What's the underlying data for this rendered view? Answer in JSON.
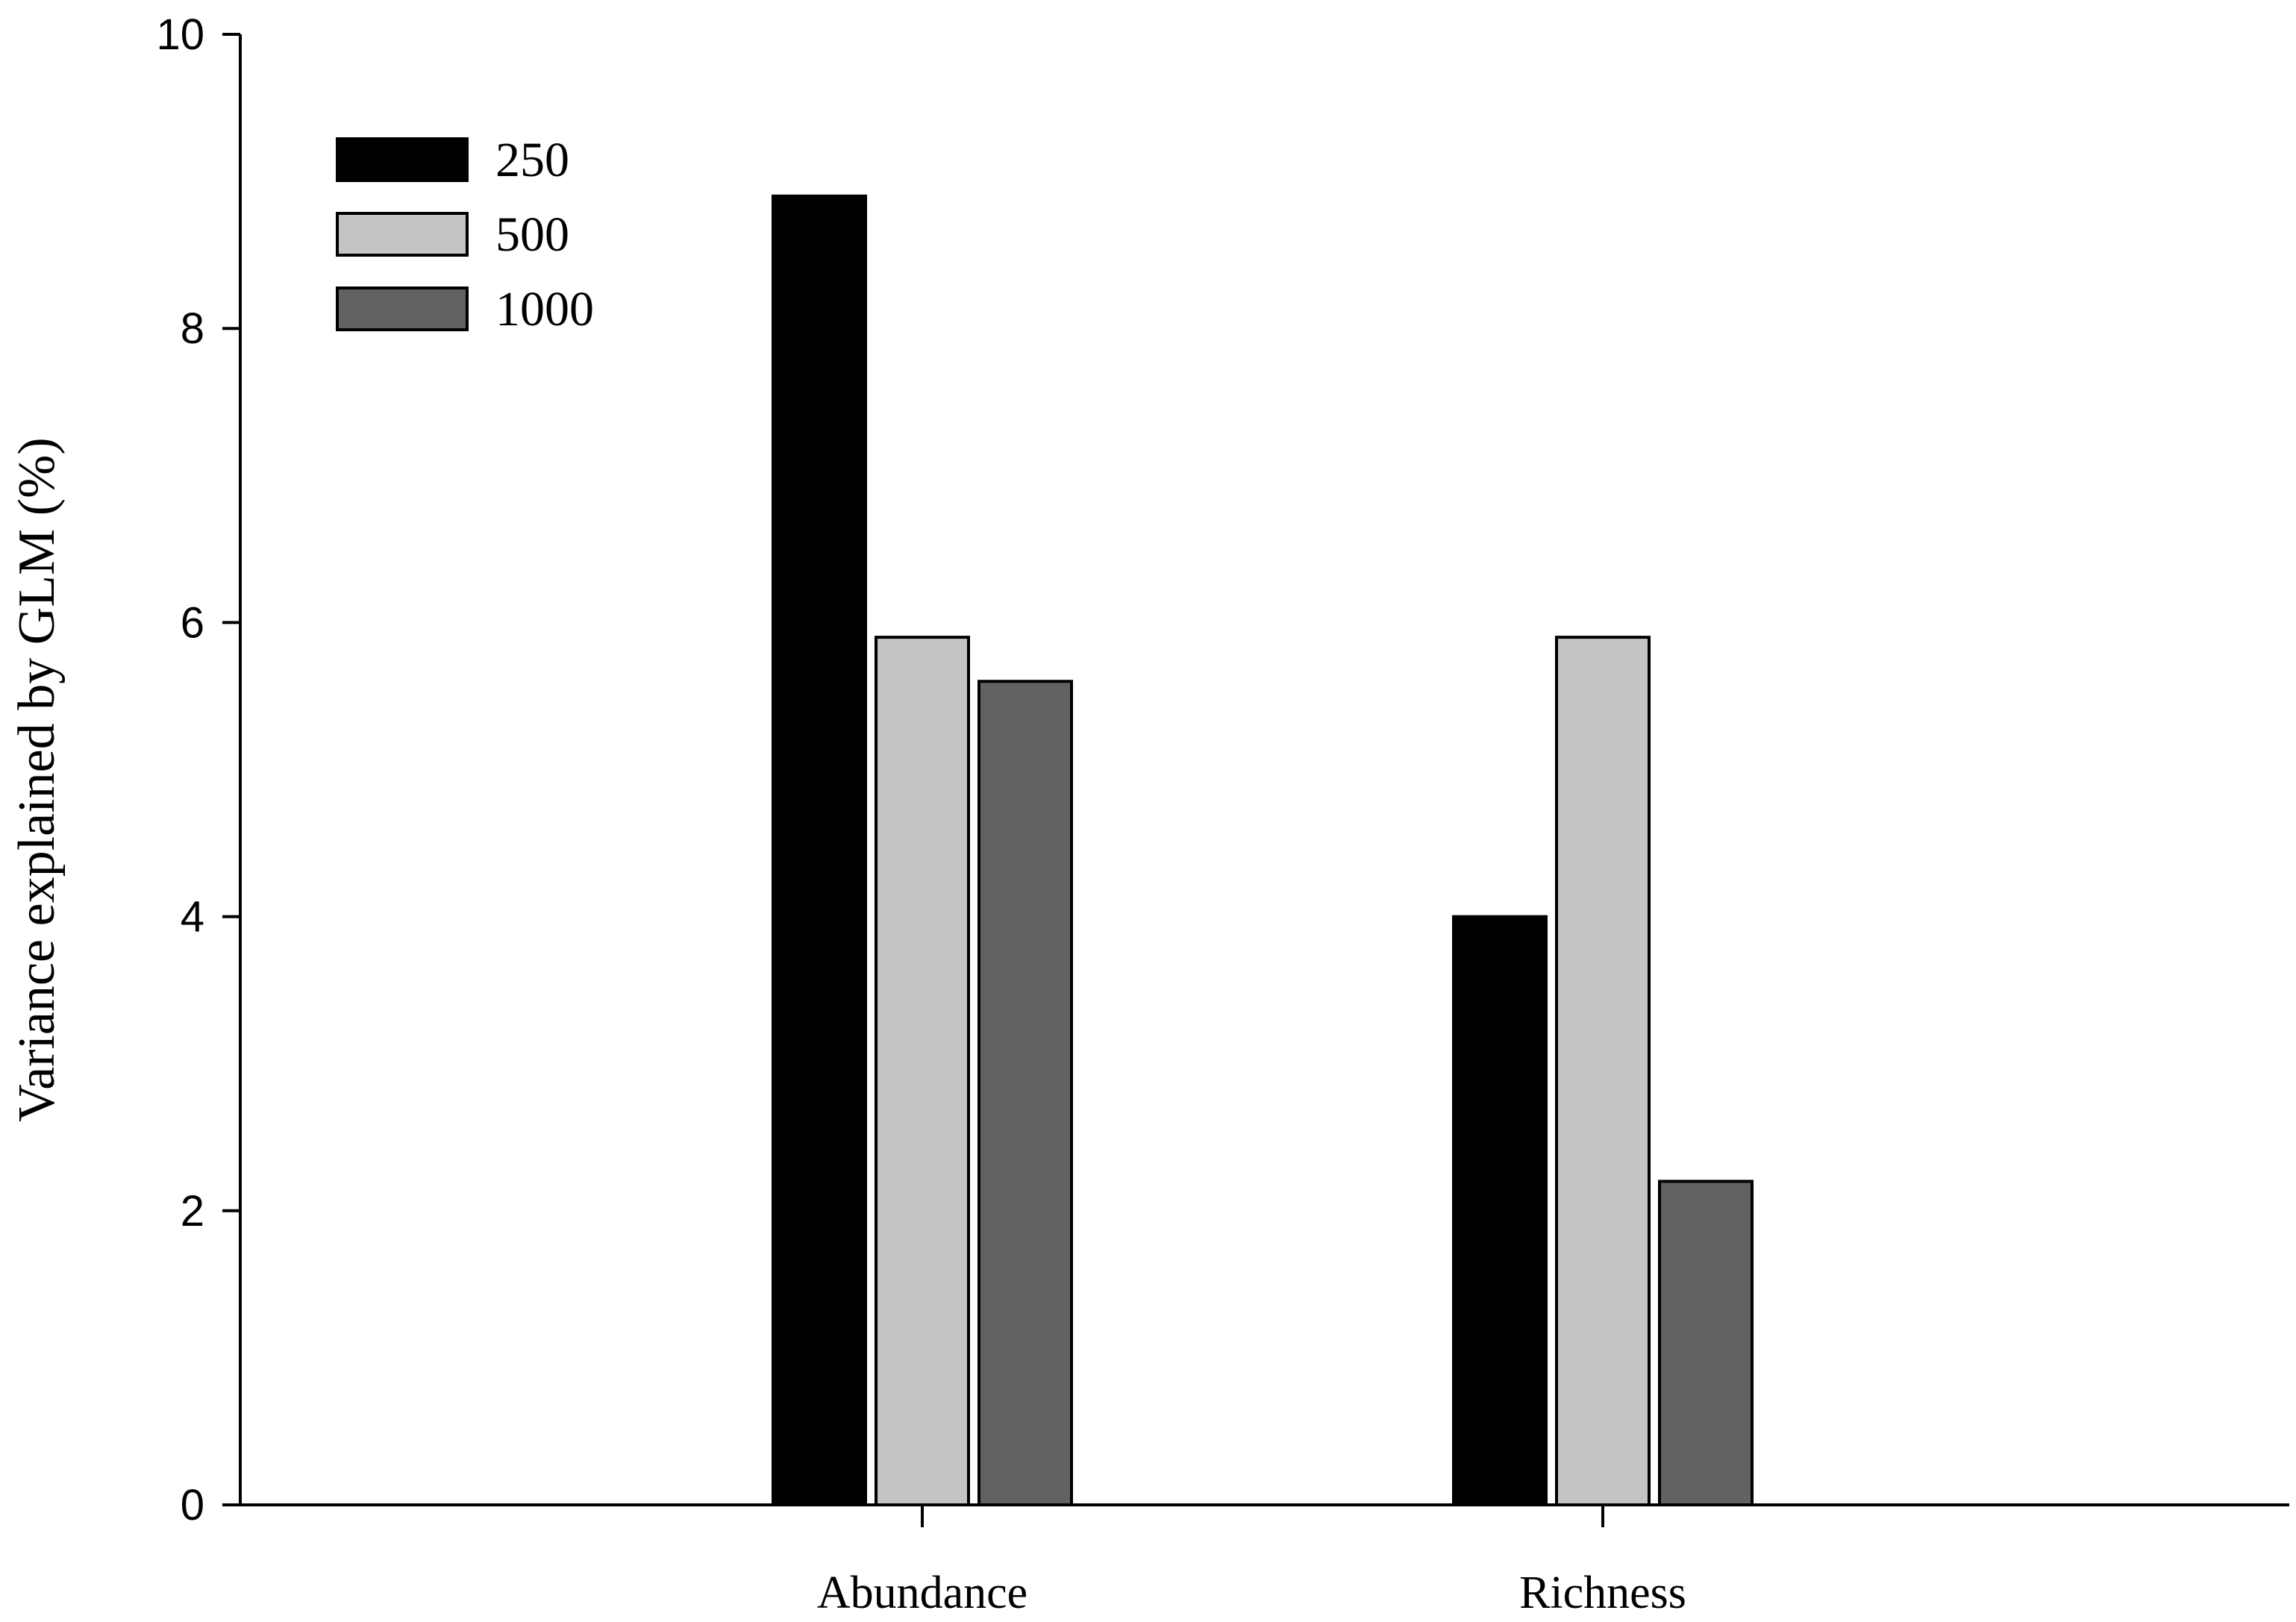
{
  "chart_data": {
    "type": "bar",
    "title": "",
    "xlabel": "",
    "ylabel": "Variance explained by GLM (%)",
    "ylim": [
      0,
      10
    ],
    "yticks": [
      0,
      2,
      4,
      6,
      8,
      10
    ],
    "grid": false,
    "legend_position": "top-left",
    "categories": [
      "Abundance",
      "Richness"
    ],
    "series": [
      {
        "name": "250",
        "values": [
          8.9,
          4.0
        ],
        "color": "#000000"
      },
      {
        "name": "500",
        "values": [
          5.9,
          5.9
        ],
        "color": "#c4c4c4"
      },
      {
        "name": "1000",
        "values": [
          5.6,
          2.2
        ],
        "color": "#626262"
      }
    ]
  }
}
